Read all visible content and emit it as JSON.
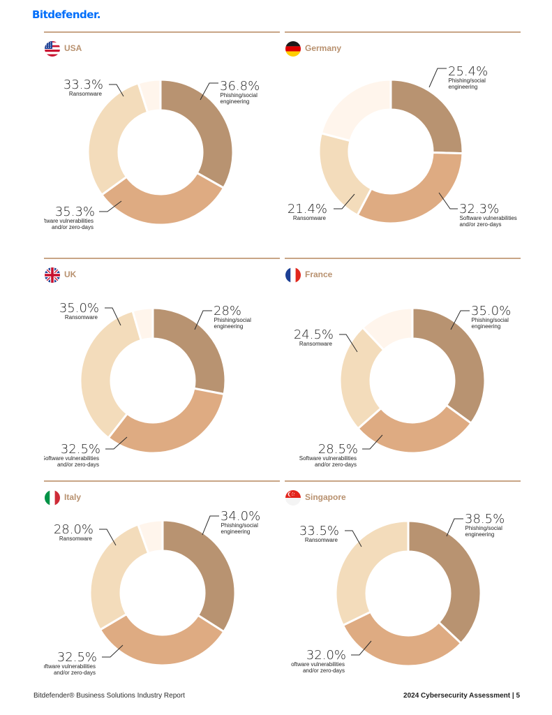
{
  "brand": "Bitdefender.",
  "footer": {
    "left": "Bitdefender® Business Solutions Industry Report",
    "right": "2024 Cybersecurity Assessment  |  5"
  },
  "colors": {
    "phishing": "#b89371",
    "software": "#deab82",
    "ransomware": "#f3dcbb",
    "other": "#fff5ec",
    "rule": "#c8a586",
    "country": "#b8916f"
  },
  "chart_data": [
    {
      "type": "pie",
      "country": "USA",
      "flag": "usa",
      "slices": [
        {
          "pct": 36.8,
          "value_text": "36.8%",
          "lines": [
            "Phishing/social",
            "engineering"
          ],
          "color": "#b89371"
        },
        {
          "pct": 35.3,
          "value_text": "35.3%",
          "lines": [
            "Software vulnerabilities",
            "and/or zero-days"
          ],
          "color": "#deab82"
        },
        {
          "pct": 33.3,
          "value_text": "33.3%",
          "lines": [
            "Ransomware"
          ],
          "color": "#f3dcbb"
        },
        {
          "pct": 5.5,
          "value_text": "",
          "lines": [],
          "color": "#fff5ec"
        }
      ]
    },
    {
      "type": "pie",
      "country": "Germany",
      "flag": "germany",
      "slices": [
        {
          "pct": 25.4,
          "value_text": "25.4%",
          "lines": [
            "Phishing/social",
            "engineering"
          ],
          "color": "#b89371"
        },
        {
          "pct": 32.3,
          "value_text": "32.3%",
          "lines": [
            "Software vulnerabilities",
            "and/or zero-days"
          ],
          "color": "#deab82"
        },
        {
          "pct": 21.4,
          "value_text": "21.4%",
          "lines": [
            "Ransomware"
          ],
          "color": "#f3dcbb"
        },
        {
          "pct": 20.9,
          "value_text": "",
          "lines": [],
          "color": "#fff5ec"
        }
      ]
    },
    {
      "type": "pie",
      "country": "UK",
      "flag": "uk",
      "slices": [
        {
          "pct": 28.0,
          "value_text": "28%",
          "lines": [
            "Phishing/social",
            "engineering"
          ],
          "color": "#b89371"
        },
        {
          "pct": 32.5,
          "value_text": "32.5%",
          "lines": [
            "Software vulnerabilities",
            "and/or zero-days"
          ],
          "color": "#deab82"
        },
        {
          "pct": 35.0,
          "value_text": "35.0%",
          "lines": [
            "Ransomware"
          ],
          "color": "#f3dcbb"
        },
        {
          "pct": 4.5,
          "value_text": "",
          "lines": [],
          "color": "#fff5ec"
        }
      ]
    },
    {
      "type": "pie",
      "country": "France",
      "flag": "france",
      "slices": [
        {
          "pct": 35.0,
          "value_text": "35.0%",
          "lines": [
            "Phishing/social",
            "engineering"
          ],
          "color": "#b89371"
        },
        {
          "pct": 28.5,
          "value_text": "28.5%",
          "lines": [
            "Software vulnerabilities",
            "and/or zero-days"
          ],
          "color": "#deab82"
        },
        {
          "pct": 24.5,
          "value_text": "24.5%",
          "lines": [
            "Ransomware"
          ],
          "color": "#f3dcbb"
        },
        {
          "pct": 12.0,
          "value_text": "",
          "lines": [],
          "color": "#fff5ec"
        }
      ]
    },
    {
      "type": "pie",
      "country": "Italy",
      "flag": "italy",
      "slices": [
        {
          "pct": 34.0,
          "value_text": "34.0%",
          "lines": [
            "Phishing/social",
            "engineering"
          ],
          "color": "#b89371"
        },
        {
          "pct": 32.5,
          "value_text": "32.5%",
          "lines": [
            "Software vulnerabilities",
            "and/or zero-days"
          ],
          "color": "#deab82"
        },
        {
          "pct": 28.0,
          "value_text": "28.0%",
          "lines": [
            "Ransomware"
          ],
          "color": "#f3dcbb"
        },
        {
          "pct": 5.5,
          "value_text": "",
          "lines": [],
          "color": "#fff5ec"
        }
      ]
    },
    {
      "type": "pie",
      "country": "Singapore",
      "flag": "singapore",
      "slices": [
        {
          "pct": 38.5,
          "value_text": "38.5%",
          "lines": [
            "Phishing/social",
            "engineering"
          ],
          "color": "#b89371"
        },
        {
          "pct": 32.0,
          "value_text": "32.0%",
          "lines": [
            "oftware vulnerabilities",
            "and/or zero-days"
          ],
          "color": "#deab82"
        },
        {
          "pct": 33.5,
          "value_text": "33.5%",
          "lines": [
            "Ransomware"
          ],
          "color": "#f3dcbb"
        }
      ]
    }
  ]
}
